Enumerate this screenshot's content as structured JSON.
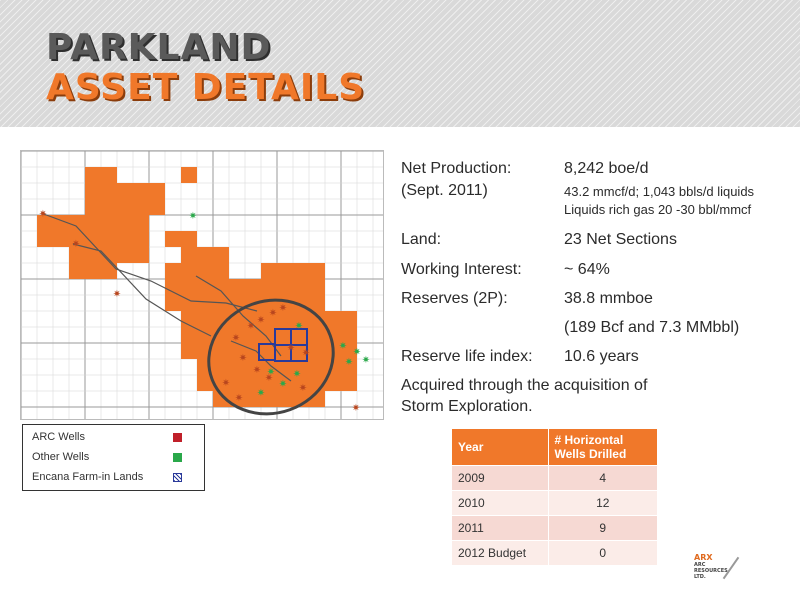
{
  "header": {
    "title_line1": "PARKLAND",
    "title_line2": "ASSET DETAILS"
  },
  "facts": {
    "net_production_label": "Net Production:",
    "net_production_value": "8,242 boe/d",
    "date_label": "(Sept. 2011)",
    "production_detail": "43.2 mmcf/d; 1,043 bbls/d liquids",
    "liquids_detail": "Liquids rich gas 20 -30 bbl/mmcf",
    "land_label": "Land:",
    "land_value": "23 Net Sections",
    "wi_label": "Working Interest:",
    "wi_value": "~ 64%",
    "reserves_label": "Reserves (2P):",
    "reserves_value": "38.8 mmboe",
    "reserves_detail": "(189 Bcf and 7.3 MMbbl)",
    "rli_label": "Reserve life index:",
    "rli_value": "10.6 years",
    "acquired_line1": "Acquired through the acquisition of",
    "acquired_line2": "Storm Exploration."
  },
  "legend": {
    "arc_wells": "ARC Wells",
    "other_wells": "Other Wells",
    "encana": "Encana Farm-in Lands"
  },
  "wells_table": {
    "headers": [
      "Year",
      "# Horizontal Wells Drilled"
    ],
    "rows": [
      {
        "year": "2009",
        "count": "4"
      },
      {
        "year": "2010",
        "count": "12"
      },
      {
        "year": "2011",
        "count": "9"
      },
      {
        "year": "2012 Budget",
        "count": "0"
      }
    ]
  },
  "logo": {
    "name": "ARX",
    "subtitle": "ARC RESOURCES LTD."
  },
  "colors": {
    "accent_orange": "#f0782a",
    "title_gray": "#5a5a5a",
    "arc_wells": "#c0202a",
    "other_wells": "#2aa84a",
    "encana_blue": "#2a3a9a"
  }
}
